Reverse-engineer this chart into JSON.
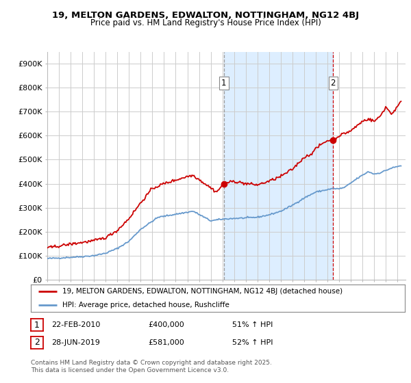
{
  "title1": "19, MELTON GARDENS, EDWALTON, NOTTINGHAM, NG12 4BJ",
  "title2": "Price paid vs. HM Land Registry's House Price Index (HPI)",
  "legend_line1": "19, MELTON GARDENS, EDWALTON, NOTTINGHAM, NG12 4BJ (detached house)",
  "legend_line2": "HPI: Average price, detached house, Rushcliffe",
  "annotation1": {
    "label": "1",
    "date": "22-FEB-2010",
    "price": "£400,000",
    "hpi": "51% ↑ HPI"
  },
  "annotation2": {
    "label": "2",
    "date": "28-JUN-2019",
    "price": "£581,000",
    "hpi": "52% ↑ HPI"
  },
  "footer": "Contains HM Land Registry data © Crown copyright and database right 2025.\nThis data is licensed under the Open Government Licence v3.0.",
  "red_color": "#cc0000",
  "blue_color": "#6699cc",
  "vline1_color": "#aaaaaa",
  "vline2_color": "#cc0000",
  "shade_color": "#ddeeff",
  "background_color": "#ffffff",
  "grid_color": "#cccccc",
  "ylim": [
    0,
    950000
  ],
  "yticks": [
    0,
    100000,
    200000,
    300000,
    400000,
    500000,
    600000,
    700000,
    800000,
    900000
  ],
  "ytick_labels": [
    "£0",
    "£100K",
    "£200K",
    "£300K",
    "£400K",
    "£500K",
    "£600K",
    "£700K",
    "£800K",
    "£900K"
  ],
  "xlim_start": 1995.0,
  "xlim_end": 2025.7,
  "purchase1_x": 2010.13,
  "purchase1_y": 400000,
  "purchase2_x": 2019.49,
  "purchase2_y": 581000,
  "hpi_waypoints_x": [
    1995.0,
    1996.0,
    1997.0,
    1998.0,
    1999.0,
    2000.0,
    2001.0,
    2002.0,
    2003.0,
    2004.5,
    2007.5,
    2009.0,
    2010.0,
    2011.0,
    2012.0,
    2013.0,
    2014.0,
    2015.0,
    2016.0,
    2017.0,
    2018.0,
    2019.5,
    2020.0,
    2020.5,
    2021.5,
    2022.5,
    2023.0,
    2023.5,
    2024.0,
    2024.5,
    2025.3
  ],
  "hpi_waypoints_y": [
    88000,
    90000,
    93000,
    96000,
    100000,
    110000,
    130000,
    160000,
    210000,
    260000,
    285000,
    245000,
    252000,
    255000,
    257000,
    260000,
    270000,
    285000,
    310000,
    340000,
    365000,
    380000,
    378000,
    385000,
    420000,
    450000,
    440000,
    445000,
    455000,
    465000,
    475000
  ],
  "prop_waypoints_x": [
    1995.0,
    1996.0,
    1997.0,
    1998.0,
    1999.0,
    2000.0,
    2001.0,
    2002.0,
    2003.0,
    2004.0,
    2005.0,
    2006.0,
    2007.0,
    2007.5,
    2008.5,
    2009.5,
    2010.13,
    2011.0,
    2012.0,
    2013.0,
    2014.0,
    2015.0,
    2016.0,
    2017.0,
    2017.5,
    2018.0,
    2018.5,
    2019.0,
    2019.49,
    2020.0,
    2020.5,
    2021.0,
    2021.5,
    2022.0,
    2022.5,
    2023.0,
    2023.5,
    2024.0,
    2024.5,
    2025.3
  ],
  "prop_waypoints_y": [
    132000,
    140000,
    148000,
    155000,
    162000,
    175000,
    205000,
    255000,
    320000,
    380000,
    400000,
    415000,
    430000,
    435000,
    400000,
    365000,
    400000,
    410000,
    400000,
    395000,
    410000,
    430000,
    460000,
    510000,
    520000,
    545000,
    565000,
    580000,
    581000,
    600000,
    610000,
    620000,
    640000,
    660000,
    670000,
    660000,
    680000,
    720000,
    690000,
    740000
  ]
}
